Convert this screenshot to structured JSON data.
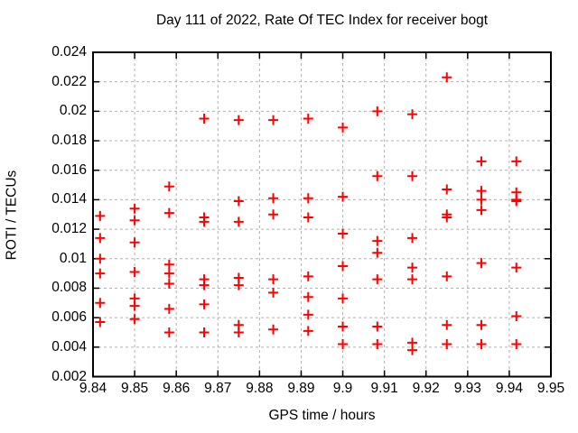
{
  "chart_data": {
    "type": "scatter",
    "title": "Day 111 of 2022, Rate Of TEC Index for receiver bogt",
    "xlabel": "GPS time / hours",
    "ylabel": "ROTI / TECUs",
    "xlim": [
      9.84,
      9.95
    ],
    "ylim": [
      0.002,
      0.024
    ],
    "grid": true,
    "legend_position": "none",
    "marker": "plus",
    "colors": {
      "marker": "#ff0000",
      "grid": "#b0b0b0",
      "axis": "#000000",
      "background": "#ffffff",
      "text": "#000000"
    },
    "xticks": [
      {
        "v": 9.84,
        "label": "9.84"
      },
      {
        "v": 9.85,
        "label": "9.85"
      },
      {
        "v": 9.86,
        "label": "9.86"
      },
      {
        "v": 9.87,
        "label": "9.87"
      },
      {
        "v": 9.88,
        "label": "9.88"
      },
      {
        "v": 9.89,
        "label": "9.89"
      },
      {
        "v": 9.9,
        "label": "9.9"
      },
      {
        "v": 9.91,
        "label": "9.91"
      },
      {
        "v": 9.92,
        "label": "9.92"
      },
      {
        "v": 9.93,
        "label": "9.93"
      },
      {
        "v": 9.94,
        "label": "9.94"
      },
      {
        "v": 9.95,
        "label": "9.95"
      }
    ],
    "yticks": [
      {
        "v": 0.002,
        "label": "0.002"
      },
      {
        "v": 0.004,
        "label": "0.004"
      },
      {
        "v": 0.006,
        "label": "0.006"
      },
      {
        "v": 0.008,
        "label": "0.008"
      },
      {
        "v": 0.01,
        "label": "0.01"
      },
      {
        "v": 0.012,
        "label": "0.012"
      },
      {
        "v": 0.014,
        "label": "0.014"
      },
      {
        "v": 0.016,
        "label": "0.016"
      },
      {
        "v": 0.018,
        "label": "0.018"
      },
      {
        "v": 0.02,
        "label": "0.02"
      },
      {
        "v": 0.022,
        "label": "0.022"
      },
      {
        "v": 0.024,
        "label": "0.024"
      }
    ],
    "series": [
      {
        "name": "ROTI",
        "points": [
          [
            9.8417,
            0.0129
          ],
          [
            9.8417,
            0.0114
          ],
          [
            9.8417,
            0.01
          ],
          [
            9.8417,
            0.009
          ],
          [
            9.8417,
            0.007
          ],
          [
            9.8417,
            0.0057
          ],
          [
            9.85,
            0.0134
          ],
          [
            9.85,
            0.0126
          ],
          [
            9.85,
            0.0111
          ],
          [
            9.85,
            0.0091
          ],
          [
            9.85,
            0.0073
          ],
          [
            9.85,
            0.0068
          ],
          [
            9.85,
            0.0059
          ],
          [
            9.8583,
            0.0149
          ],
          [
            9.8583,
            0.0131
          ],
          [
            9.8583,
            0.0096
          ],
          [
            9.8583,
            0.009
          ],
          [
            9.8583,
            0.0083
          ],
          [
            9.8583,
            0.0066
          ],
          [
            9.8583,
            0.005
          ],
          [
            9.8667,
            0.0195
          ],
          [
            9.8667,
            0.0128
          ],
          [
            9.8667,
            0.0125
          ],
          [
            9.8667,
            0.0086
          ],
          [
            9.8667,
            0.0082
          ],
          [
            9.8667,
            0.0069
          ],
          [
            9.8667,
            0.005
          ],
          [
            9.875,
            0.0194
          ],
          [
            9.875,
            0.0139
          ],
          [
            9.875,
            0.0125
          ],
          [
            9.875,
            0.0087
          ],
          [
            9.875,
            0.0082
          ],
          [
            9.875,
            0.0055
          ],
          [
            9.875,
            0.005
          ],
          [
            9.8833,
            0.0194
          ],
          [
            9.8833,
            0.0141
          ],
          [
            9.8833,
            0.013
          ],
          [
            9.8833,
            0.0086
          ],
          [
            9.8833,
            0.0077
          ],
          [
            9.8833,
            0.0052
          ],
          [
            9.8917,
            0.0195
          ],
          [
            9.8917,
            0.0141
          ],
          [
            9.8917,
            0.0128
          ],
          [
            9.8917,
            0.0088
          ],
          [
            9.8917,
            0.0074
          ],
          [
            9.8917,
            0.0062
          ],
          [
            9.8917,
            0.0051
          ],
          [
            9.9,
            0.0189
          ],
          [
            9.9,
            0.0142
          ],
          [
            9.9,
            0.0117
          ],
          [
            9.9,
            0.0095
          ],
          [
            9.9,
            0.0073
          ],
          [
            9.9,
            0.0054
          ],
          [
            9.9,
            0.0042
          ],
          [
            9.9083,
            0.02
          ],
          [
            9.9083,
            0.0156
          ],
          [
            9.9083,
            0.0112
          ],
          [
            9.9083,
            0.0104
          ],
          [
            9.9083,
            0.0086
          ],
          [
            9.9083,
            0.0054
          ],
          [
            9.9083,
            0.0042
          ],
          [
            9.9167,
            0.0198
          ],
          [
            9.9167,
            0.0156
          ],
          [
            9.9167,
            0.0114
          ],
          [
            9.9167,
            0.0094
          ],
          [
            9.9167,
            0.0086
          ],
          [
            9.9167,
            0.0043
          ],
          [
            9.9167,
            0.0038
          ],
          [
            9.925,
            0.0223
          ],
          [
            9.925,
            0.0147
          ],
          [
            9.925,
            0.013
          ],
          [
            9.925,
            0.0128
          ],
          [
            9.925,
            0.0088
          ],
          [
            9.925,
            0.0055
          ],
          [
            9.925,
            0.0042
          ],
          [
            9.9333,
            0.0166
          ],
          [
            9.9333,
            0.0146
          ],
          [
            9.9333,
            0.014
          ],
          [
            9.9333,
            0.0133
          ],
          [
            9.9333,
            0.0097
          ],
          [
            9.9333,
            0.0055
          ],
          [
            9.9333,
            0.0042
          ],
          [
            9.9417,
            0.0166
          ],
          [
            9.9417,
            0.0145
          ],
          [
            9.9417,
            0.014
          ],
          [
            9.9417,
            0.0139
          ],
          [
            9.9417,
            0.0094
          ],
          [
            9.9417,
            0.0061
          ],
          [
            9.9417,
            0.0042
          ]
        ]
      }
    ]
  }
}
